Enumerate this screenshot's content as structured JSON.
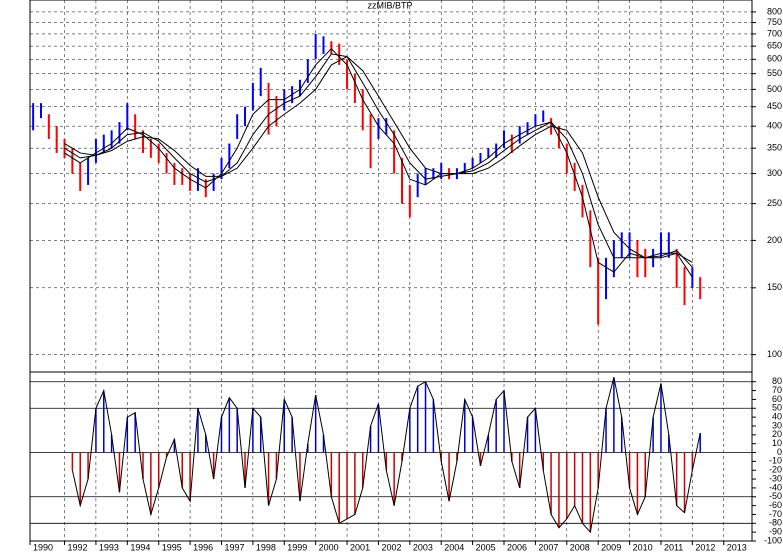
{
  "chart_data": [
    {
      "type": "range",
      "title": "zzMIB/BTP",
      "x": [
        1991,
        1991.25,
        1991.5,
        1991.75,
        1992,
        1992.25,
        1992.5,
        1992.75,
        1993,
        1993.25,
        1993.5,
        1993.75,
        1994,
        1994.25,
        1994.5,
        1994.75,
        1995,
        1995.25,
        1995.5,
        1995.75,
        1996,
        1996.25,
        1996.5,
        1996.75,
        1997,
        1997.25,
        1997.5,
        1997.75,
        1998,
        1998.25,
        1998.5,
        1998.75,
        1999,
        1999.25,
        1999.5,
        1999.75,
        2000,
        2000.25,
        2000.5,
        2000.75,
        2001,
        2001.25,
        2001.5,
        2001.75,
        2002,
        2002.25,
        2002.5,
        2002.75,
        2003,
        2003.25,
        2003.5,
        2003.75,
        2004,
        2004.25,
        2004.5,
        2004.75,
        2005,
        2005.25,
        2005.5,
        2005.75,
        2006,
        2006.25,
        2006.5,
        2006.75,
        2007,
        2007.25,
        2007.5,
        2007.75,
        2008,
        2008.25,
        2008.5,
        2008.75,
        2009,
        2009.25,
        2009.5,
        2009.75,
        2010,
        2010.25,
        2010.5,
        2010.75,
        2011,
        2011.25,
        2011.5,
        2011.75,
        2012,
        2012.25
      ],
      "high": [
        460,
        460,
        430,
        400,
        370,
        350,
        320,
        330,
        370,
        380,
        390,
        410,
        460,
        430,
        390,
        370,
        360,
        340,
        320,
        310,
        300,
        310,
        290,
        300,
        330,
        360,
        430,
        450,
        520,
        570,
        520,
        480,
        500,
        510,
        530,
        600,
        700,
        690,
        670,
        660,
        600,
        550,
        500,
        430,
        420,
        420,
        390,
        330,
        280,
        300,
        310,
        310,
        320,
        310,
        310,
        320,
        330,
        340,
        350,
        360,
        390,
        380,
        400,
        410,
        430,
        440,
        420,
        400,
        360,
        320,
        280,
        240,
        180,
        180,
        200,
        210,
        210,
        200,
        190,
        190,
        210,
        210,
        190,
        170,
        170,
        160
      ],
      "low": [
        390,
        420,
        370,
        340,
        330,
        300,
        270,
        280,
        320,
        340,
        350,
        360,
        390,
        370,
        340,
        330,
        320,
        300,
        280,
        280,
        270,
        270,
        260,
        270,
        290,
        310,
        370,
        400,
        440,
        480,
        380,
        400,
        440,
        460,
        480,
        520,
        600,
        620,
        620,
        580,
        500,
        460,
        390,
        310,
        370,
        380,
        300,
        250,
        230,
        260,
        280,
        290,
        290,
        290,
        290,
        300,
        310,
        320,
        330,
        330,
        350,
        340,
        360,
        380,
        400,
        410,
        380,
        350,
        300,
        270,
        230,
        170,
        120,
        140,
        160,
        180,
        180,
        160,
        160,
        170,
        180,
        180,
        150,
        135,
        150,
        140
      ],
      "up_color": "#0000ff",
      "down_color": "#ff0000",
      "lines_x": [
        1992,
        1992.5,
        1993,
        1993.5,
        1994,
        1994.5,
        1995,
        1995.5,
        1996,
        1996.5,
        1997,
        1997.5,
        1998,
        1998.5,
        1999,
        1999.5,
        2000,
        2000.5,
        2001,
        2001.5,
        2002,
        2002.5,
        2003,
        2003.5,
        2004,
        2004.5,
        2005,
        2005.5,
        2006,
        2006.5,
        2007,
        2007.5,
        2008,
        2008.5,
        2009,
        2009.5,
        2010,
        2010.5,
        2011,
        2011.5,
        2012
      ],
      "lines": [
        {
          "color": "#000000",
          "values": [
            340,
            320,
            340,
            360,
            395,
            380,
            350,
            310,
            290,
            275,
            300,
            350,
            430,
            470,
            470,
            500,
            580,
            640,
            580,
            470,
            400,
            360,
            290,
            280,
            300,
            300,
            310,
            330,
            360,
            380,
            400,
            410,
            340,
            260,
            175,
            165,
            185,
            180,
            185,
            185,
            160
          ]
        },
        {
          "color": "#000000",
          "values": [
            350,
            330,
            335,
            350,
            380,
            385,
            365,
            330,
            300,
            285,
            295,
            320,
            380,
            430,
            460,
            480,
            540,
            620,
            610,
            520,
            440,
            380,
            320,
            290,
            295,
            300,
            305,
            320,
            345,
            370,
            390,
            410,
            370,
            300,
            220,
            180,
            180,
            180,
            182,
            188,
            170
          ]
        },
        {
          "color": "#000000",
          "values": [
            360,
            340,
            335,
            345,
            365,
            375,
            370,
            345,
            315,
            295,
            295,
            310,
            350,
            400,
            430,
            460,
            500,
            580,
            610,
            560,
            480,
            410,
            350,
            310,
            300,
            300,
            300,
            310,
            330,
            355,
            380,
            400,
            390,
            340,
            260,
            210,
            190,
            180,
            180,
            185,
            175
          ]
        }
      ],
      "log": true,
      "ylim": [
        90,
        860
      ],
      "yticks": [
        800,
        750,
        700,
        650,
        600,
        550,
        500,
        450,
        400,
        350,
        300,
        250,
        200,
        150,
        100
      ],
      "xlim": [
        1990.9,
        2013.9
      ],
      "grid": true
    },
    {
      "type": "bar",
      "x": [
        1991,
        1991.25,
        1991.5,
        1991.75,
        1992,
        1992.25,
        1992.5,
        1992.75,
        1993,
        1993.25,
        1993.5,
        1993.75,
        1994,
        1994.25,
        1994.5,
        1994.75,
        1995,
        1995.25,
        1995.5,
        1995.75,
        1996,
        1996.25,
        1996.5,
        1996.75,
        1997,
        1997.25,
        1997.5,
        1997.75,
        1998,
        1998.25,
        1998.5,
        1998.75,
        1999,
        1999.25,
        1999.5,
        1999.75,
        2000,
        2000.25,
        2000.5,
        2000.75,
        2001,
        2001.25,
        2001.5,
        2001.75,
        2002,
        2002.25,
        2002.5,
        2002.75,
        2003,
        2003.25,
        2003.5,
        2003.75,
        2004,
        2004.25,
        2004.5,
        2004.75,
        2005,
        2005.25,
        2005.5,
        2005.75,
        2006,
        2006.25,
        2006.5,
        2006.75,
        2007,
        2007.25,
        2007.5,
        2007.75,
        2008,
        2008.25,
        2008.5,
        2008.75,
        2009,
        2009.25,
        2009.5,
        2009.75,
        2010,
        2010.25,
        2010.5,
        2010.75,
        2011,
        2011.25,
        2011.5,
        2011.75,
        2012,
        2012.25
      ],
      "values": [
        null,
        null,
        null,
        null,
        null,
        -20,
        -60,
        -30,
        50,
        70,
        20,
        -45,
        40,
        45,
        -30,
        -70,
        -40,
        -5,
        15,
        -40,
        -55,
        50,
        20,
        -30,
        40,
        62,
        50,
        -40,
        50,
        40,
        -60,
        -30,
        60,
        40,
        -55,
        10,
        65,
        20,
        -50,
        -80,
        -75,
        -70,
        -40,
        30,
        55,
        -20,
        -60,
        -10,
        50,
        75,
        80,
        60,
        -10,
        -55,
        -10,
        60,
        40,
        -15,
        20,
        60,
        70,
        -10,
        -40,
        40,
        50,
        -20,
        -70,
        -85,
        -75,
        -60,
        -80,
        -90,
        -40,
        50,
        85,
        40,
        -40,
        -70,
        -50,
        40,
        78,
        20,
        -60,
        -68,
        -20,
        22
      ],
      "pos_color": "#0000cc",
      "neg_color": "#cc0000",
      "ylim": [
        -100,
        91
      ],
      "yticks": [
        80,
        70,
        60,
        50,
        40,
        30,
        20,
        10,
        0,
        -10,
        -20,
        -30,
        -40,
        -50,
        -60,
        -70,
        -80,
        -90,
        -100
      ],
      "levels": [
        80,
        50,
        0,
        -50,
        -80
      ],
      "xlim": [
        1990.9,
        2013.9
      ],
      "xticks": [
        {
          "value": 1990.9,
          "label": "1990"
        },
        1992,
        1993,
        1994,
        1995,
        1996,
        1997,
        1998,
        1999,
        2000,
        2001,
        2002,
        2003,
        2004,
        2005,
        2006,
        2007,
        2008,
        2009,
        2010,
        2011,
        2012,
        2013
      ],
      "grid": true
    }
  ]
}
